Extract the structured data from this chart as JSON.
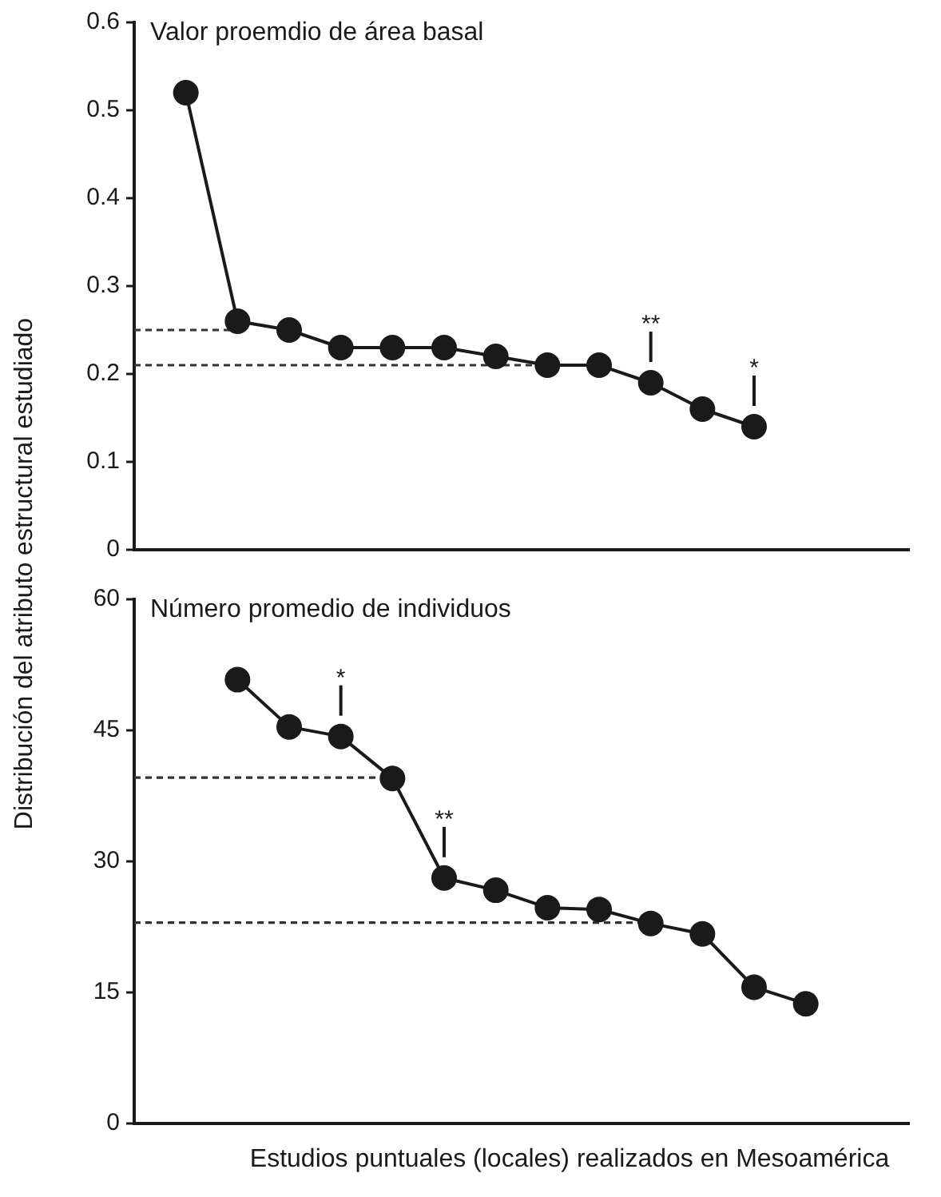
{
  "chart_data": [
    {
      "type": "line",
      "title": "Valor proemdio de área basal",
      "ylabel": "Distribución del atributo estructural estudiado",
      "categories": [
        null,
        null,
        null,
        null,
        null,
        null,
        null,
        null,
        null,
        null,
        null,
        null,
        null,
        null,
        null,
        null
      ],
      "ylim": [
        0,
        0.6
      ],
      "yticks": [
        0,
        0.1,
        0.2,
        0.3,
        0.4,
        0.5,
        0.6
      ],
      "tick_labels": "y",
      "grid": false,
      "legend": false,
      "marker": "circle",
      "series": [
        {
          "color": "#1a1a1a",
          "values": [
            null,
            0.52,
            0.26,
            0.25,
            0.23,
            0.23,
            0.23,
            0.22,
            0.21,
            0.21,
            0.19,
            0.16,
            0.14,
            null,
            null,
            null
          ]
        },
        {
          "color": "#333333",
          "values": [
            0.25,
            0.25,
            0.25,
            null,
            null,
            null,
            null,
            null,
            null,
            null,
            null,
            null,
            null,
            null,
            null,
            null
          ],
          "line_style": "dashed",
          "marker": "none"
        },
        {
          "color": "#333333",
          "values": [
            0.21,
            0.21,
            0.21,
            0.21,
            0.21,
            0.21,
            0.21,
            0.21,
            0.21,
            0.21,
            null,
            null,
            null,
            null,
            null,
            null
          ],
          "line_style": "dashed",
          "marker": "none"
        }
      ],
      "annotations": [
        {
          "text": "**",
          "y": 0.19
        },
        {
          "text": "*",
          "y": 0.14
        }
      ]
    },
    {
      "type": "line",
      "title": "Número promedio de individuos",
      "xlabel": "Estudios puntuales (locales) realizados en Mesoamérica",
      "categories": [
        null,
        null,
        null,
        null,
        null,
        null,
        null,
        null,
        null,
        null,
        null,
        null,
        null,
        null,
        null,
        null
      ],
      "ylim": [
        0,
        60
      ],
      "yticks": [
        0,
        15,
        30,
        45,
        60
      ],
      "tick_labels": "y",
      "grid": false,
      "legend": false,
      "marker": "circle",
      "series": [
        {
          "color": "#1a1a1a",
          "values": [
            null,
            null,
            50.8,
            45.4,
            44.3,
            39.5,
            28.1,
            26.7,
            24.7,
            24.5,
            22.9,
            21.7,
            15.6,
            13.7,
            null,
            null
          ]
        },
        {
          "color": "#333333",
          "values": [
            39.6,
            39.6,
            39.6,
            39.6,
            39.6,
            39.6,
            null,
            null,
            null,
            null,
            null,
            null,
            null,
            null,
            null,
            null
          ],
          "line_style": "dashed",
          "marker": "none"
        },
        {
          "color": "#333333",
          "values": [
            23,
            23,
            23,
            23,
            23,
            23,
            23,
            23,
            23,
            23,
            23,
            null,
            null,
            null,
            null,
            null
          ],
          "line_style": "dashed",
          "marker": "none"
        }
      ],
      "annotations": [
        {
          "text": "*",
          "y": 44.3
        },
        {
          "text": "**",
          "y": 28.1
        }
      ]
    }
  ]
}
